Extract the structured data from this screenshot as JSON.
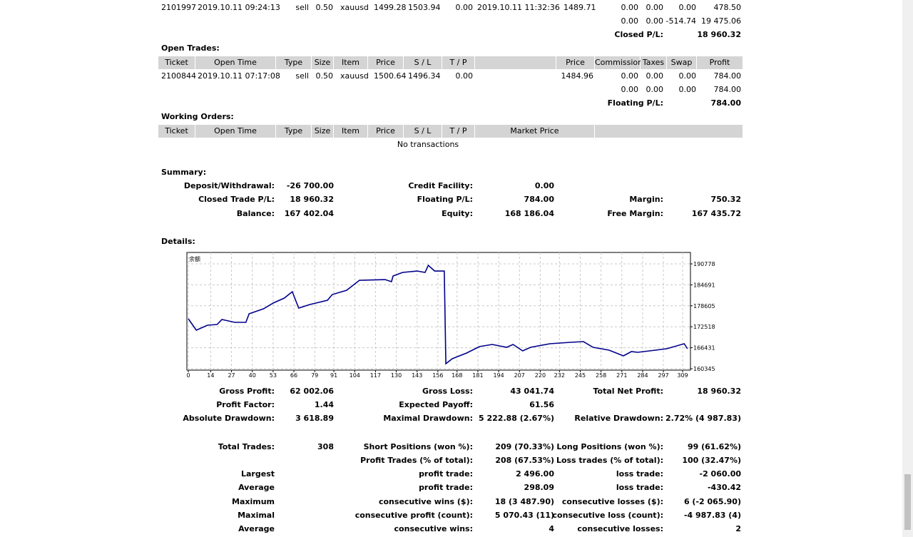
{
  "closed_trades": {
    "rows": [
      {
        "ticket": "2101997",
        "open_time": "2019.10.11 09:24:13",
        "type": "sell",
        "size": "0.50",
        "item": "xauusd",
        "price": "1499.28",
        "sl": "1503.94",
        "tp": "0.00",
        "close_time": "2019.10.11 11:32:36",
        "close_price": "1489.71",
        "commission": "0.00",
        "taxes": "0.00",
        "swap": "0.00",
        "profit": "478.50"
      }
    ],
    "subtotal": {
      "commission": "0.00",
      "taxes": "0.00",
      "swap": "-514.74",
      "profit": "19 475.06"
    },
    "total": {
      "label": "Closed P/L:",
      "value": "18 960.32"
    }
  },
  "open_trades": {
    "title": "Open Trades:",
    "header": [
      "Ticket",
      "Open Time",
      "Type",
      "Size",
      "Item",
      "Price",
      "S / L",
      "T / P",
      "Price",
      "Commission",
      "Taxes",
      "Swap",
      "Profit"
    ],
    "rows": [
      {
        "ticket": "2100844",
        "open_time": "2019.10.11 07:17:08",
        "type": "sell",
        "size": "0.50",
        "item": "xauusd",
        "price": "1500.64",
        "sl": "1496.34",
        "tp": "0.00",
        "market_price": "1484.96",
        "commission": "0.00",
        "taxes": "0.00",
        "swap": "0.00",
        "profit": "784.00"
      }
    ],
    "subtotal": {
      "commission": "0.00",
      "taxes": "0.00",
      "swap": "0.00",
      "profit": "784.00"
    },
    "total": {
      "label": "Floating P/L:",
      "value": "784.00"
    }
  },
  "working_orders": {
    "title": "Working Orders:",
    "header": [
      "Ticket",
      "Open Time",
      "Type",
      "Size",
      "Item",
      "Price",
      "S / L",
      "T / P",
      "Market Price"
    ],
    "empty_text": "No transactions"
  },
  "summary": {
    "title": "Summary:",
    "rows": [
      {
        "left": {
          "label": "Deposit/Withdrawal:",
          "value": "-26 700.00"
        },
        "middle": {
          "label": "Credit Facility:",
          "value": "0.00"
        }
      },
      {
        "left": {
          "label": "Closed Trade P/L:",
          "value": "18 960.32"
        },
        "middle": {
          "label": "Floating P/L:",
          "value": "784.00"
        },
        "right": {
          "label": "Margin:",
          "value": "750.32"
        }
      },
      {
        "left": {
          "label": "Balance:",
          "value": "167 402.04"
        },
        "middle": {
          "label": "Equity:",
          "value": "168 186.04"
        },
        "right": {
          "label": "Free Margin:",
          "value": "167 435.72"
        }
      }
    ]
  },
  "details": {
    "title": "Details:",
    "rows": [
      {
        "left": {
          "label": "Gross Profit:",
          "value": "62 002.06"
        },
        "middle": {
          "label": "Gross Loss:",
          "value": "43 041.74"
        },
        "right": {
          "label": "Total Net Profit:",
          "value": "18 960.32"
        }
      },
      {
        "left": {
          "label": "Profit Factor:",
          "value": "1.44"
        },
        "middle": {
          "label": "Expected Payoff:",
          "value": "61.56"
        }
      },
      {
        "left": {
          "label": "Absolute Drawdown:",
          "value": "3 618.89"
        },
        "middle": {
          "label": "Maximal Drawdown:",
          "value": "5 222.88 (2.67%)"
        },
        "right": {
          "label": "Relative Drawdown:",
          "value": "2.72% (4 987.83)"
        }
      }
    ],
    "trade_rows": [
      {
        "left": {
          "label": "Total Trades:",
          "value": "308"
        },
        "middle": {
          "label": "Short Positions (won %):",
          "value": "209 (70.33%)"
        },
        "right": {
          "label": "Long Positions (won %):",
          "value": "99 (61.62%)"
        }
      },
      {
        "middle": {
          "label": "Profit Trades (% of total):",
          "value": "208 (67.53%)"
        },
        "right": {
          "label": "Loss trades (% of total):",
          "value": "100 (32.47%)"
        }
      },
      {
        "left": {
          "label": "Largest"
        },
        "middle": {
          "label": "profit trade:",
          "value": "2 496.00"
        },
        "right": {
          "label": "loss trade:",
          "value": "-2 060.00"
        }
      },
      {
        "left": {
          "label": "Average"
        },
        "middle": {
          "label": "profit trade:",
          "value": "298.09"
        },
        "right": {
          "label": "loss trade:",
          "value": "-430.42"
        }
      },
      {
        "left": {
          "label": "Maximum"
        },
        "middle": {
          "label": "consecutive wins ($):",
          "value": "18 (3 487.90)"
        },
        "right": {
          "label": "consecutive losses ($):",
          "value": "6 (-2 065.90)"
        }
      },
      {
        "left": {
          "label": "Maximal"
        },
        "middle": {
          "label": "consecutive profit (count):",
          "value": "5 070.43 (11)"
        },
        "right": {
          "label": "consecutive loss (count):",
          "value": "-4 987.83 (4)"
        }
      },
      {
        "left": {
          "label": "Average"
        },
        "middle": {
          "label": "consecutive wins:",
          "value": "4"
        },
        "right": {
          "label": "consecutive losses:",
          "value": "2"
        }
      }
    ]
  },
  "chart_data": {
    "type": "line",
    "title": "余额",
    "x": [
      0,
      5,
      12,
      18,
      21,
      29,
      36,
      38,
      47,
      53,
      60,
      65,
      69,
      76,
      87,
      90,
      99,
      107,
      123,
      127,
      128,
      134,
      143,
      148,
      150,
      154,
      160,
      161,
      165,
      174,
      182,
      190,
      199,
      203,
      209,
      214,
      226,
      239,
      247,
      253,
      263,
      272,
      277,
      281,
      292,
      299,
      310,
      312
    ],
    "series": [
      {
        "name": "余额",
        "color": "#00008b",
        "values": [
          174835,
          171523,
          172972,
          173179,
          174628,
          173800,
          173800,
          176284,
          177733,
          179389,
          180838,
          182701,
          177940,
          178975,
          180217,
          181873,
          183115,
          186013,
          186220,
          185599,
          187255,
          188290,
          188704,
          188290,
          190360,
          188704,
          188704,
          161794,
          163243,
          164899,
          166762,
          167383,
          166555,
          167383,
          165520,
          166555,
          167590,
          168004,
          168211,
          166555,
          165727,
          164071,
          165313,
          165106,
          165727,
          166141,
          167590,
          166141
        ]
      }
    ],
    "xlim": [
      0,
      313
    ],
    "xticks": [
      0,
      14,
      27,
      40,
      53,
      66,
      79,
      91,
      104,
      117,
      130,
      143,
      156,
      168,
      181,
      194,
      207,
      220,
      232,
      245,
      258,
      271,
      284,
      297,
      309
    ],
    "ylim": [
      160345,
      193676
    ],
    "yticks": [
      160345,
      166431,
      172518,
      178605,
      184691,
      190778
    ],
    "grid": true
  }
}
